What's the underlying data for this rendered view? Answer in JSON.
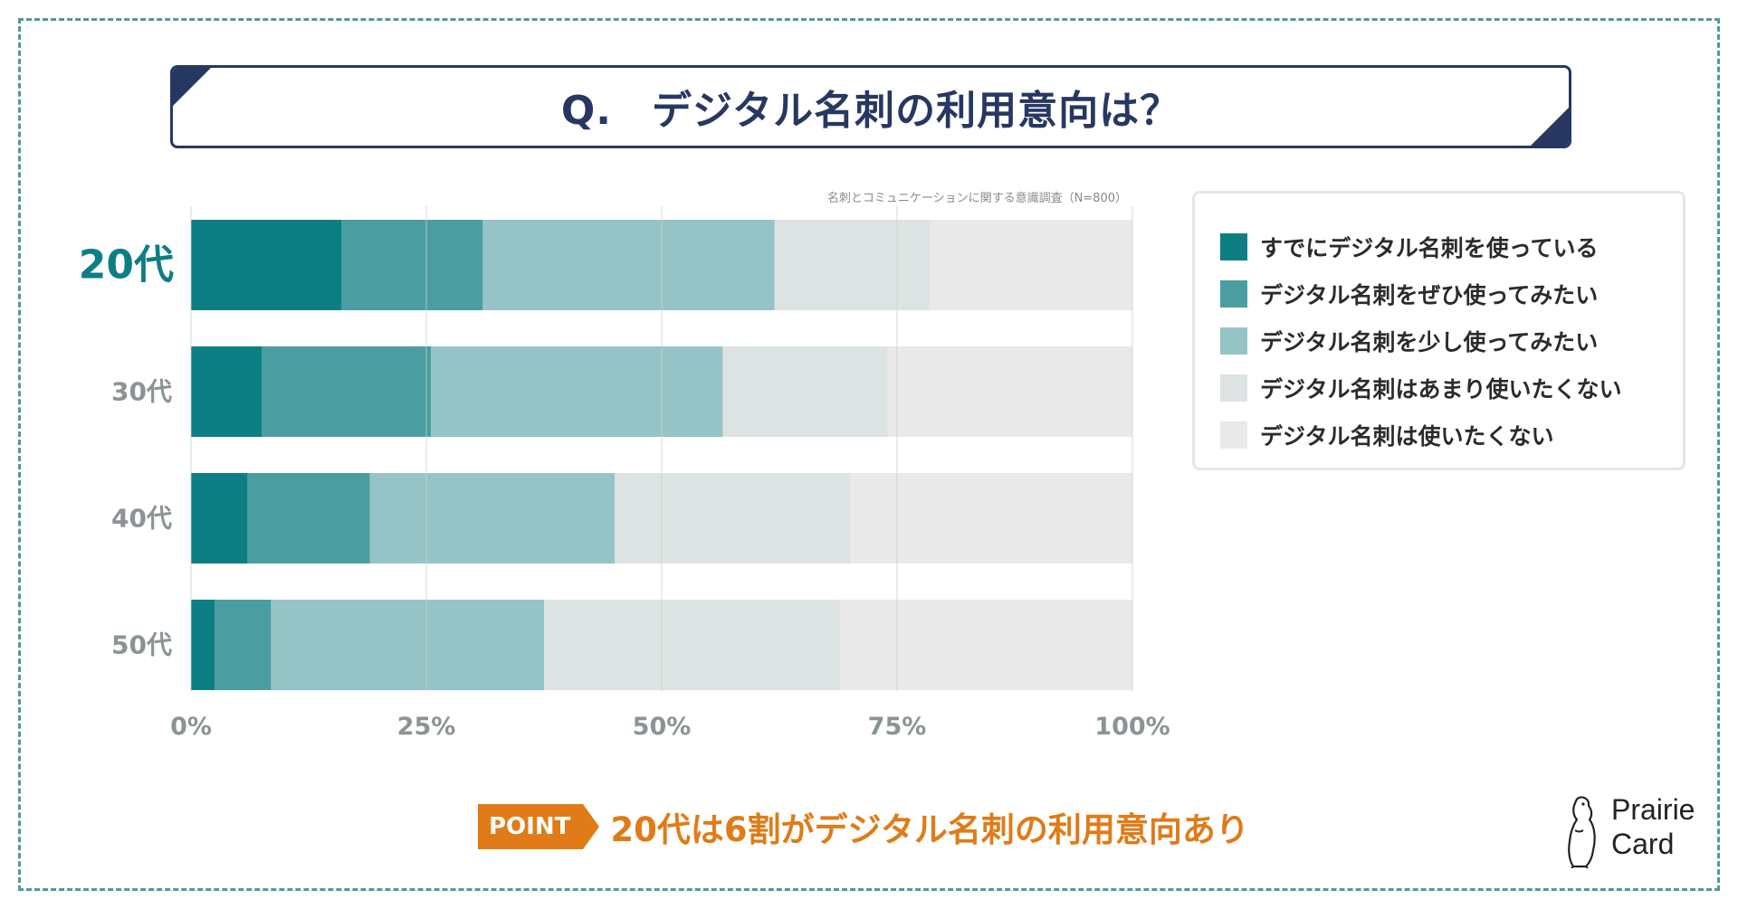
{
  "title": {
    "q": "Q.",
    "text": "デジタル名刺の利用意向は？"
  },
  "source_note": "名刺とコミュニケーションに関する意識調査（N=800）",
  "legend": [
    {
      "label": "すでにデジタル名刺を使っている",
      "color": "#0e7e85"
    },
    {
      "label": "デジタル名刺をぜひ使ってみたい",
      "color": "#4a9ea2"
    },
    {
      "label": "デジタル名刺を少し使ってみたい",
      "color": "#96c4c6"
    },
    {
      "label": "デジタル名刺はあまり使いたくない",
      "color": "#dde3e2"
    },
    {
      "label": "デジタル名刺は使いたくない",
      "color": "#e9e9e9"
    }
  ],
  "point": {
    "tag": "POINT",
    "text": "20代は6割がデジタル名刺の利用意向あり"
  },
  "logo": {
    "line1": "Prairie",
    "line2": "Card"
  },
  "chart_data": {
    "type": "bar",
    "orientation": "horizontal",
    "stacked": true,
    "categories": [
      "20代",
      "30代",
      "40代",
      "50代"
    ],
    "highlight_category": "20代",
    "series": [
      {
        "name": "すでにデジタル名刺を使っている",
        "values": [
          16.0,
          7.5,
          6.0,
          2.5
        ]
      },
      {
        "name": "デジタル名刺をぜひ使ってみたい",
        "values": [
          15.0,
          18.0,
          13.0,
          6.0
        ]
      },
      {
        "name": "デジタル名刺を少し使ってみたい",
        "values": [
          31.0,
          31.0,
          26.0,
          29.0
        ]
      },
      {
        "name": "デジタル名刺はあまり使いたくない",
        "values": [
          16.5,
          17.5,
          25.0,
          31.5
        ]
      },
      {
        "name": "デジタル名刺は使いたくない",
        "values": [
          21.5,
          26.0,
          30.0,
          31.0
        ]
      }
    ],
    "xticks": [
      "0%",
      "25%",
      "50%",
      "75%",
      "100%"
    ],
    "xlim": [
      0,
      100
    ],
    "grid": true,
    "legend_position": "right"
  }
}
